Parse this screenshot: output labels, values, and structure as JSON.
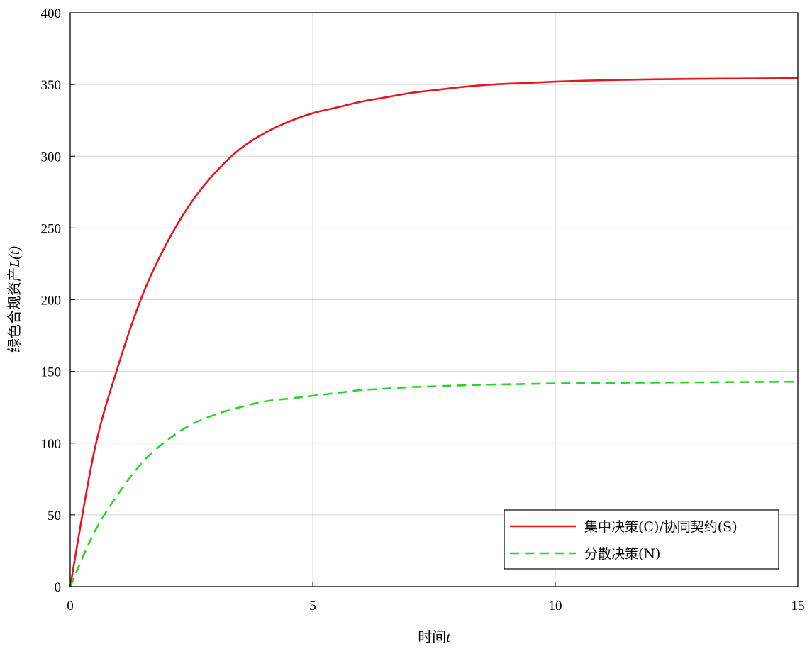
{
  "chart_data": {
    "type": "line",
    "title": "",
    "xlabel": "时间",
    "xlabel_var": "t",
    "ylabel": "绿色合规资产",
    "ylabel_var": "L(t)",
    "xlim": [
      0,
      15
    ],
    "ylim": [
      0,
      400
    ],
    "xticks": [
      0,
      5,
      10,
      15
    ],
    "yticks": [
      0,
      50,
      100,
      150,
      200,
      250,
      300,
      350,
      400
    ],
    "grid": true,
    "legend_position": "bottom-right",
    "x": [
      0,
      0.5,
      1,
      1.5,
      2,
      2.5,
      3,
      3.5,
      4,
      4.5,
      5,
      5.5,
      6,
      6.5,
      7,
      7.5,
      8,
      8.5,
      9,
      9.5,
      10,
      10.5,
      11,
      11.5,
      12,
      12.5,
      13,
      13.5,
      14,
      14.5,
      15
    ],
    "series": [
      {
        "name": "集中决策(C)/协同契约(S)",
        "color": "#e8141e",
        "style": "solid",
        "values": [
          0,
          95,
          155,
          204,
          240,
          268,
          289,
          305,
          316,
          324,
          330,
          334,
          338,
          341,
          344,
          346,
          348,
          349.5,
          350.5,
          351.2,
          352,
          352.6,
          353,
          353.3,
          353.6,
          353.8,
          354,
          354.1,
          354.2,
          354.3,
          354.4
        ]
      },
      {
        "name": "分散决策(N)",
        "color": "#26d626",
        "style": "dashed",
        "values": [
          0,
          38,
          65,
          87,
          102,
          113,
          120,
          125,
          129,
          131,
          133,
          135,
          137,
          138,
          139,
          139.6,
          140.2,
          140.7,
          141,
          141.3,
          141.6,
          141.8,
          142,
          142.1,
          142.2,
          142.3,
          142.4,
          142.5,
          142.6,
          142.7,
          142.8
        ]
      }
    ]
  }
}
